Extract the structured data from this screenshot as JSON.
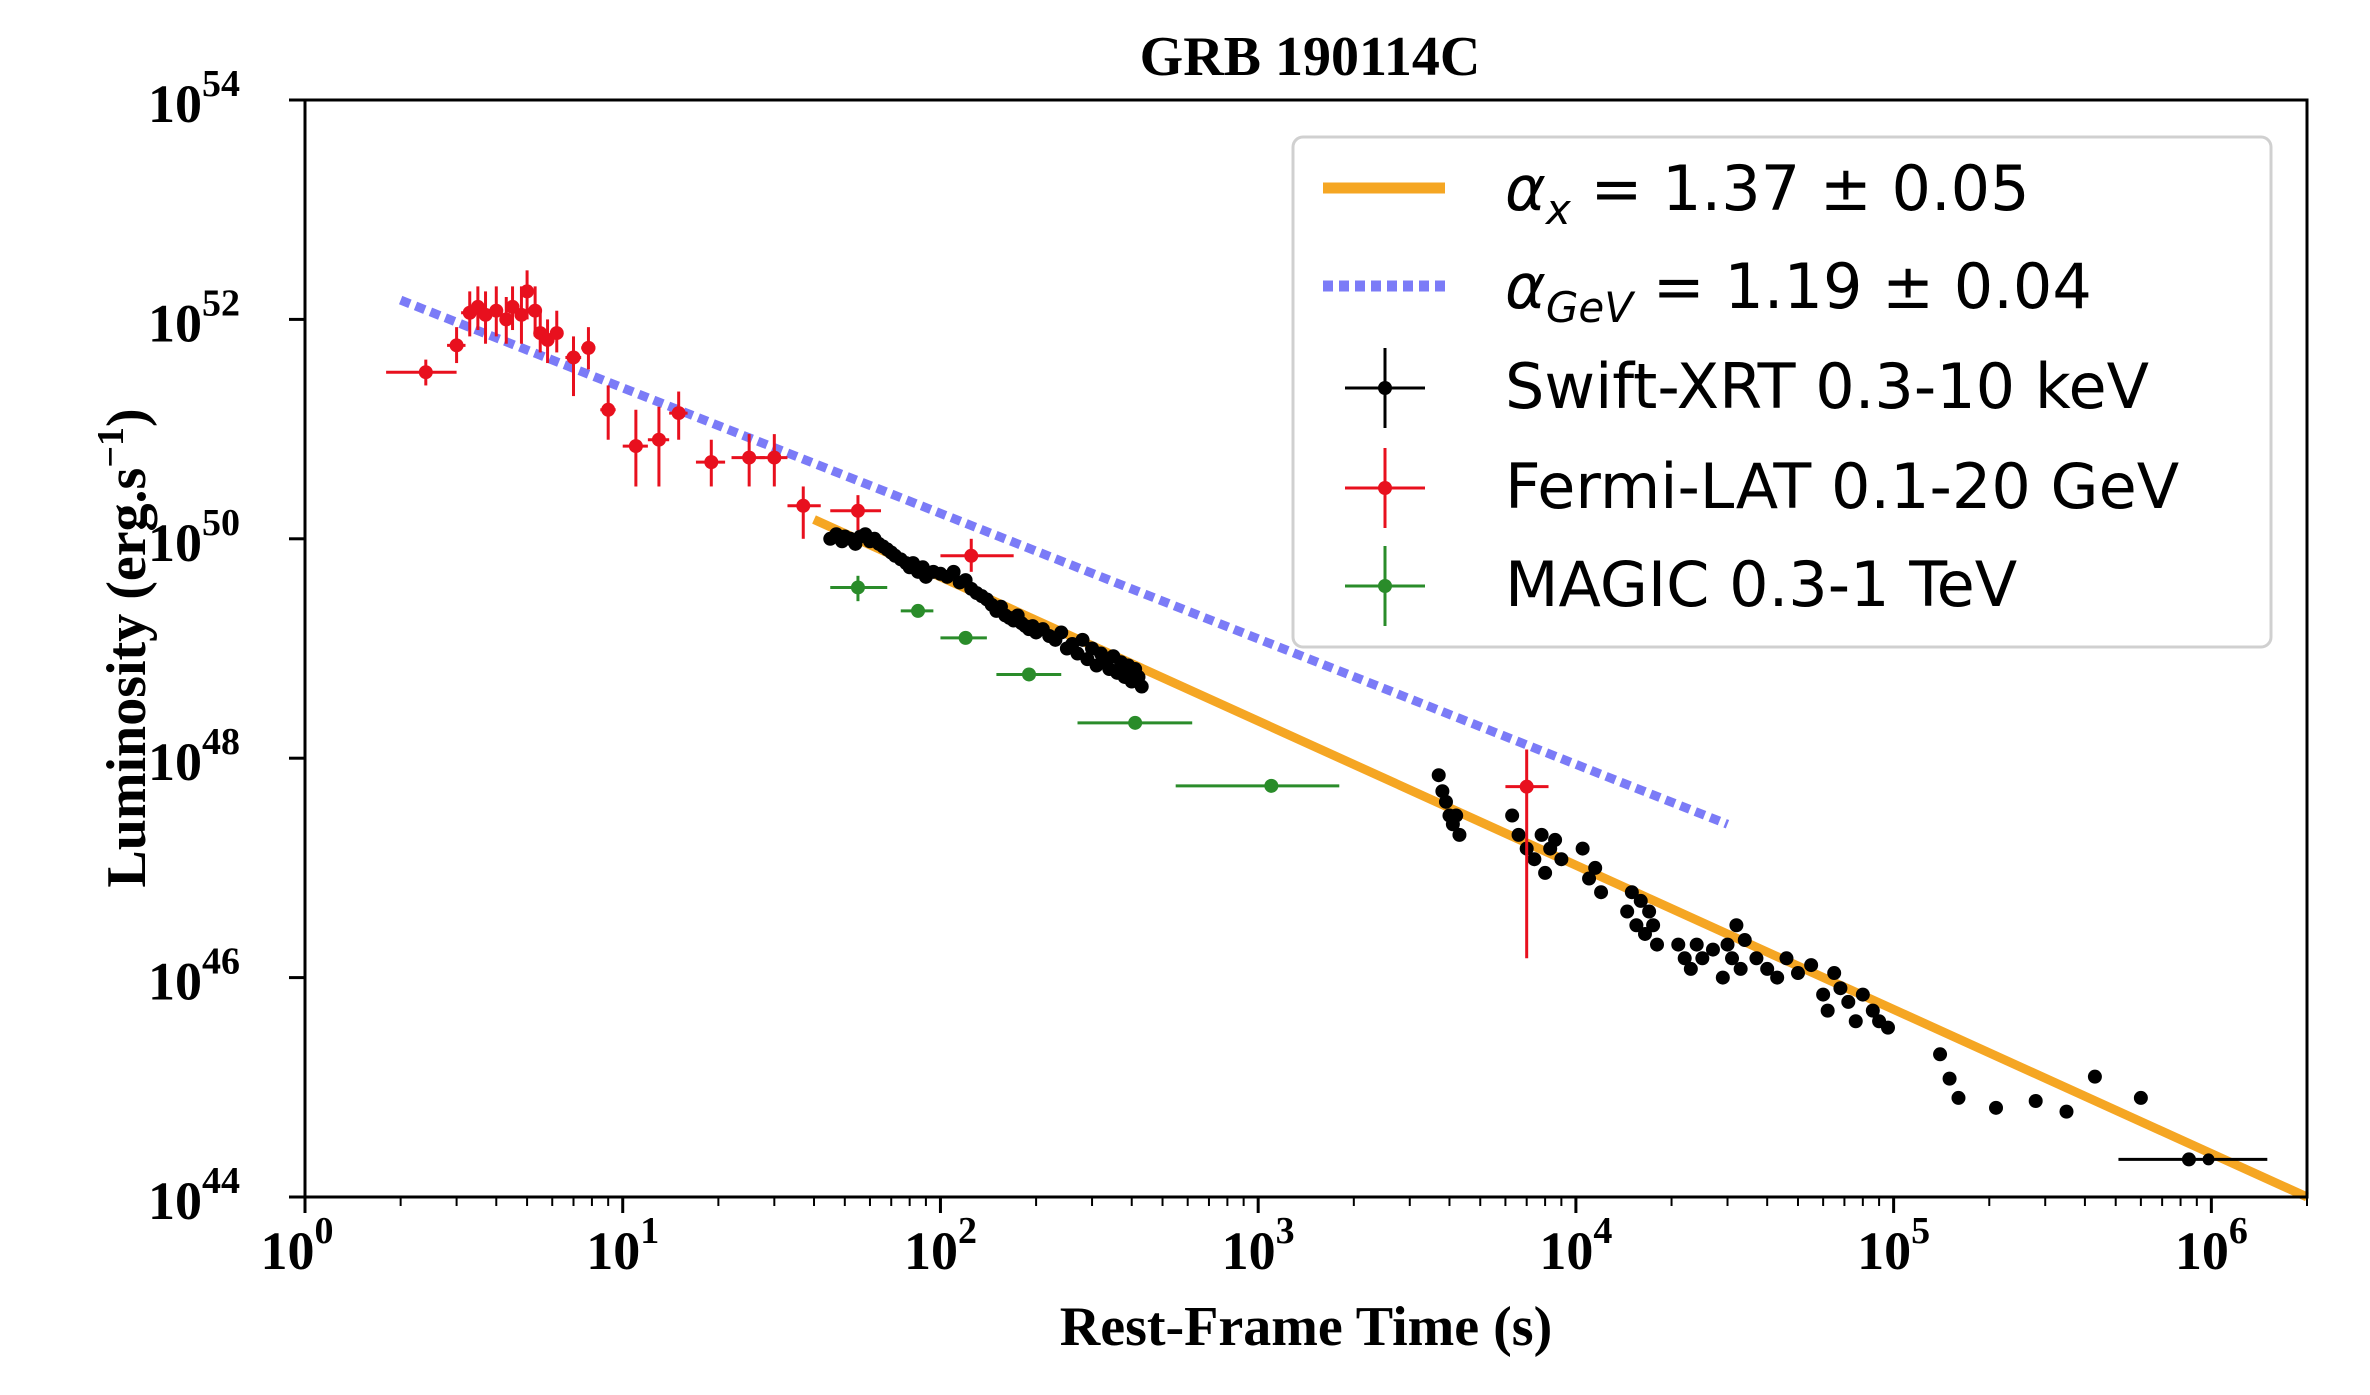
{
  "chart_data": {
    "type": "scatter",
    "title": "GRB 190114C",
    "xlabel": "Rest-Frame Time (s)",
    "ylabel": "Luminosity (erg.s",
    "ylabel_sup": "−1",
    "ylabel_close": ")",
    "xscale": "log",
    "yscale": "log",
    "xlim": [
      1,
      2000000
    ],
    "ylim": [
      1e+44,
      1e+54
    ],
    "xticks": [
      {
        "value": 1,
        "base": "10",
        "exp": "0"
      },
      {
        "value": 10,
        "base": "10",
        "exp": "1"
      },
      {
        "value": 100,
        "base": "10",
        "exp": "2"
      },
      {
        "value": 1000,
        "base": "10",
        "exp": "3"
      },
      {
        "value": 10000,
        "base": "10",
        "exp": "4"
      },
      {
        "value": 100000,
        "base": "10",
        "exp": "5"
      },
      {
        "value": 1000000,
        "base": "10",
        "exp": "6"
      }
    ],
    "yticks": [
      {
        "value": 1e+44,
        "base": "10",
        "exp": "44"
      },
      {
        "value": 1e+46,
        "base": "10",
        "exp": "46"
      },
      {
        "value": 1e+48,
        "base": "10",
        "exp": "48"
      },
      {
        "value": 1e+50,
        "base": "10",
        "exp": "50"
      },
      {
        "value": 1e+52,
        "base": "10",
        "exp": "52"
      },
      {
        "value": 1e+54,
        "base": "10",
        "exp": "54"
      }
    ],
    "grid": false,
    "legend_position": "top-right",
    "lines": [
      {
        "label_base": "α",
        "label_sub": "x",
        "label_rest": " = 1.37 ± 0.05",
        "color": "#f5a623",
        "style": "solid",
        "points": [
          [
            40,
            1.5e+50
          ],
          [
            2000000,
            1e+44
          ]
        ]
      },
      {
        "label_base": "α",
        "label_sub": "GeV",
        "label_rest": " = 1.19 ± 0.04",
        "color": "#7b7bf7",
        "style": "dotted",
        "points": [
          [
            2,
            1.5e+52
          ],
          [
            30000,
            2.5e+47
          ]
        ]
      }
    ],
    "series": [
      {
        "name": "Swift-XRT 0.3-10 keV",
        "color": "#000000",
        "points": [
          [
            45,
            1e+50
          ],
          [
            47,
            1.1e+50
          ],
          [
            49,
            9.5e+49
          ],
          [
            50,
            1.05e+50
          ],
          [
            52,
            1e+50
          ],
          [
            54,
            9e+49
          ],
          [
            56,
            1.05e+50
          ],
          [
            58,
            1.1e+50
          ],
          [
            60,
            9.5e+49
          ],
          [
            62,
            1e+50
          ],
          [
            64,
            9e+49
          ],
          [
            66,
            8.5e+49
          ],
          [
            68,
            8e+49
          ],
          [
            70,
            7.5e+49
          ],
          [
            72,
            7e+49
          ],
          [
            75,
            6.5e+49
          ],
          [
            78,
            6e+49
          ],
          [
            80,
            5.5e+49
          ],
          [
            82,
            6e+49
          ],
          [
            85,
            5e+49
          ],
          [
            88,
            5.5e+49
          ],
          [
            90,
            4.5e+49
          ],
          [
            95,
            5e+49
          ],
          [
            100,
            4.8e+49
          ],
          [
            105,
            4.5e+49
          ],
          [
            110,
            5e+49
          ],
          [
            115,
            4e+49
          ],
          [
            120,
            4.2e+49
          ],
          [
            125,
            3.5e+49
          ],
          [
            130,
            3.2e+49
          ],
          [
            135,
            3e+49
          ],
          [
            140,
            2.8e+49
          ],
          [
            145,
            2.5e+49
          ],
          [
            150,
            2.2e+49
          ],
          [
            155,
            2.4e+49
          ],
          [
            160,
            2e+49
          ],
          [
            165,
            1.9e+49
          ],
          [
            170,
            1.8e+49
          ],
          [
            175,
            2e+49
          ],
          [
            180,
            1.7e+49
          ],
          [
            185,
            1.6e+49
          ],
          [
            190,
            1.5e+49
          ],
          [
            195,
            1.6e+49
          ],
          [
            200,
            1.4e+49
          ],
          [
            210,
            1.5e+49
          ],
          [
            220,
            1.3e+49
          ],
          [
            230,
            1.2e+49
          ],
          [
            240,
            1.4e+49
          ],
          [
            250,
            1e+49
          ],
          [
            260,
            1.1e+49
          ],
          [
            270,
            9e+48
          ],
          [
            280,
            1.2e+49
          ],
          [
            290,
            8e+48
          ],
          [
            300,
            1e+49
          ],
          [
            310,
            7e+48
          ],
          [
            320,
            9e+48
          ],
          [
            330,
            8e+48
          ],
          [
            340,
            6.5e+48
          ],
          [
            350,
            8.5e+48
          ],
          [
            360,
            6e+48
          ],
          [
            370,
            7.5e+48
          ],
          [
            380,
            5.5e+48
          ],
          [
            390,
            7e+48
          ],
          [
            400,
            5e+48
          ],
          [
            410,
            6.5e+48
          ],
          [
            420,
            5.5e+48
          ],
          [
            430,
            4.5e+48
          ],
          [
            3700,
            7e+47
          ],
          [
            3800,
            5e+47
          ],
          [
            3900,
            4e+47
          ],
          [
            4000,
            3e+47
          ],
          [
            4100,
            2.5e+47
          ],
          [
            4200,
            3e+47
          ],
          [
            4300,
            2e+47
          ],
          [
            6300,
            3e+47
          ],
          [
            6600,
            2e+47
          ],
          [
            7000,
            1.5e+47
          ],
          [
            7400,
            1.2e+47
          ],
          [
            7800,
            2e+47
          ],
          [
            8000,
            9e+46
          ],
          [
            8300,
            1.5e+47
          ],
          [
            8600,
            1.8e+47
          ],
          [
            9000,
            1.2e+47
          ],
          [
            10500,
            1.5e+47
          ],
          [
            11000,
            8e+46
          ],
          [
            11500,
            1e+47
          ],
          [
            12000,
            6e+46
          ],
          [
            14500,
            4e+46
          ],
          [
            15000,
            6e+46
          ],
          [
            15500,
            3e+46
          ],
          [
            16000,
            5e+46
          ],
          [
            16500,
            2.5e+46
          ],
          [
            17000,
            4e+46
          ],
          [
            17500,
            3e+46
          ],
          [
            18000,
            2e+46
          ],
          [
            21000,
            2e+46
          ],
          [
            22000,
            1.5e+46
          ],
          [
            23000,
            1.2e+46
          ],
          [
            24000,
            2e+46
          ],
          [
            25000,
            1.5e+46
          ],
          [
            27000,
            1.8e+46
          ],
          [
            29000,
            1e+46
          ],
          [
            30000,
            2e+46
          ],
          [
            31000,
            1.5e+46
          ],
          [
            32000,
            3e+46
          ],
          [
            33000,
            1.2e+46
          ],
          [
            34000,
            2.2e+46
          ],
          [
            37000,
            1.5e+46
          ],
          [
            40000,
            1.2e+46
          ],
          [
            43000,
            1e+46
          ],
          [
            46000,
            1.5e+46
          ],
          [
            50000,
            1.1e+46
          ],
          [
            55000,
            1.3e+46
          ],
          [
            60000,
            7e+45
          ],
          [
            62000,
            5e+45
          ],
          [
            65000,
            1.1e+46
          ],
          [
            68000,
            8e+45
          ],
          [
            72000,
            6e+45
          ],
          [
            76000,
            4e+45
          ],
          [
            80000,
            7e+45
          ],
          [
            86000,
            5e+45
          ],
          [
            90000,
            4e+45
          ],
          [
            96000,
            3.5e+45
          ],
          [
            140000,
            2e+45
          ],
          [
            150000,
            1.2e+45
          ],
          [
            160000,
            8e+44
          ],
          [
            210000,
            6.5e+44
          ],
          [
            280000,
            7.5e+44
          ],
          [
            350000,
            6e+44
          ],
          [
            430000,
            1.25e+45
          ],
          [
            600000,
            8e+44
          ],
          [
            850000,
            2.2e+44
          ]
        ],
        "xerr_points": [
          [
            [
              510000,
              1500000
            ],
            2.2e+44
          ]
        ]
      },
      {
        "name": "Fermi-LAT 0.1-20 GeV",
        "color": "#e8101e",
        "points": [
          [
            2.4,
            3.3e+51,
            1.8,
            3.0,
            2.5e+51,
            4.3e+51
          ],
          [
            3.0,
            5.8e+51,
            2.8,
            3.2,
            4e+51,
            8.5e+51
          ],
          [
            3.3,
            1.15e+52,
            3.1,
            3.5,
            7e+51,
            1.8e+52
          ],
          [
            3.5,
            1.3e+52,
            3.3,
            3.7,
            8e+51,
            2e+52
          ],
          [
            3.7,
            1.1e+52,
            3.5,
            3.9,
            6e+51,
            1.8e+52
          ],
          [
            4.0,
            1.2e+52,
            3.8,
            4.2,
            7e+51,
            2e+52
          ],
          [
            4.3,
            1e+52,
            4.1,
            4.5,
            6e+51,
            1.6e+52
          ],
          [
            4.5,
            1.3e+52,
            4.3,
            4.7,
            8e+51,
            2e+52
          ],
          [
            4.8,
            1.1e+52,
            4.6,
            5.0,
            6e+51,
            2e+52
          ],
          [
            5.0,
            1.8e+52,
            4.8,
            5.2,
            1e+52,
            2.8e+52
          ],
          [
            5.3,
            1.2e+52,
            5.1,
            5.5,
            7e+51,
            2e+52
          ],
          [
            5.5,
            7.5e+51,
            5.3,
            5.7,
            5e+51,
            1.2e+52
          ],
          [
            5.8,
            6.5e+51,
            5.6,
            6.0,
            4e+51,
            1e+52
          ],
          [
            6.2,
            7.5e+51,
            6.0,
            6.5,
            5e+51,
            1.2e+52
          ],
          [
            7.0,
            4.5e+51,
            6.6,
            7.4,
            2e+51,
            7e+51
          ],
          [
            7.8,
            5.5e+51,
            7.4,
            8.2,
            3.5e+51,
            8.5e+51
          ],
          [
            9.0,
            1.5e+51,
            8.5,
            9.5,
            8e+50,
            2.5e+51
          ],
          [
            11.0,
            7e+50,
            10.0,
            12.0,
            3e+50,
            1.5e+51
          ],
          [
            13.0,
            8e+50,
            12.0,
            14.0,
            3e+50,
            1.6e+51
          ],
          [
            15.0,
            1.4e+51,
            14.0,
            16.0,
            8e+50,
            2.2e+51
          ],
          [
            19.0,
            5e+50,
            17.0,
            21.0,
            3e+50,
            8e+50
          ],
          [
            25.0,
            5.5e+50,
            22.0,
            28.0,
            3e+50,
            9e+50
          ],
          [
            30.0,
            5.5e+50,
            27.0,
            33.0,
            3e+50,
            9e+50
          ],
          [
            37.0,
            2e+50,
            33.0,
            42.0,
            1e+50,
            3e+50
          ],
          [
            55.0,
            1.8e+50,
            45.0,
            65.0,
            1.2e+50,
            2.5e+50
          ],
          [
            125.0,
            7e+49,
            100.0,
            170.0,
            5e+49,
            1e+50
          ],
          [
            7000.0,
            5.5e+47,
            6000.0,
            8200.0,
            1.5e+46,
            1.2e+48
          ]
        ]
      },
      {
        "name": "MAGIC 0.3-1 TeV",
        "color": "#2a8c2a",
        "points": [
          [
            55,
            3.6e+49,
            45,
            68,
            2.7e+49,
            4.6e+49
          ],
          [
            85,
            2.2e+49,
            75,
            95,
            null,
            null
          ],
          [
            120,
            1.25e+49,
            100,
            140,
            null,
            null
          ],
          [
            190,
            5.8e+48,
            150,
            240,
            null,
            null
          ],
          [
            410,
            2.1e+48,
            270,
            620,
            null,
            null
          ],
          [
            1100,
            5.6e+47,
            550,
            1800,
            null,
            null
          ]
        ]
      }
    ]
  }
}
